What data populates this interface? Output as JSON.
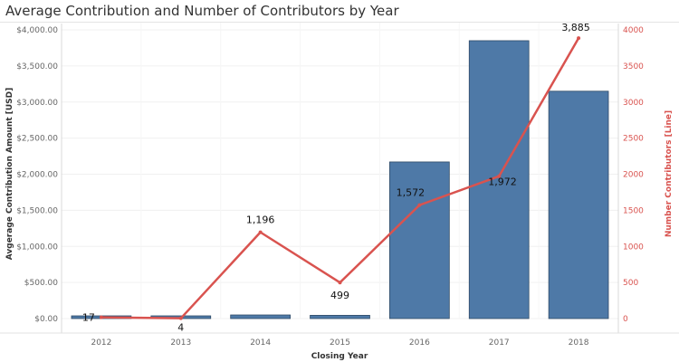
{
  "chart_data": {
    "type": "bar+line",
    "title": "Average Contribution and Number of Contributors by Year",
    "xlabel": "Closing Year",
    "categories": [
      "2012",
      "2013",
      "2014",
      "2015",
      "2016",
      "2017",
      "2018"
    ],
    "series": [
      {
        "name": "Avgerage Contribution Amount [USD]",
        "type": "bar",
        "axis": "left",
        "color": "#4e79a7",
        "values": [
          30,
          25,
          50,
          45,
          2170,
          3850,
          3150
        ]
      },
      {
        "name": "Number Contributors [Line]",
        "type": "line",
        "axis": "right",
        "color": "#d9534f",
        "values": [
          17,
          4,
          1196,
          499,
          1572,
          1972,
          3885
        ],
        "labels": [
          "17",
          "4",
          "1,196",
          "499",
          "1,572",
          "1,972",
          "3,885"
        ]
      }
    ],
    "y_left": {
      "label": "Avgerage Contribution Amount [USD]",
      "range": [
        0,
        4000
      ],
      "ticks": [
        0,
        500,
        1000,
        1500,
        2000,
        2500,
        3000,
        3500,
        4000
      ],
      "tick_labels": [
        "$0.00",
        "$500.00",
        "$1,000.00",
        "$1,500.00",
        "$2,000.00",
        "$2,500.00",
        "$3,000.00",
        "$3,500.00",
        "$4,000.00"
      ]
    },
    "y_right": {
      "label": "Number Contributors [Line]",
      "range": [
        0,
        4000
      ],
      "ticks": [
        0,
        500,
        1000,
        1500,
        2000,
        2500,
        3000,
        3500,
        4000
      ],
      "tick_labels": [
        "0",
        "500",
        "1000",
        "1500",
        "2000",
        "2500",
        "3000",
        "3500",
        "4000"
      ],
      "color": "#d9534f"
    },
    "grid": true,
    "legend": "none"
  }
}
